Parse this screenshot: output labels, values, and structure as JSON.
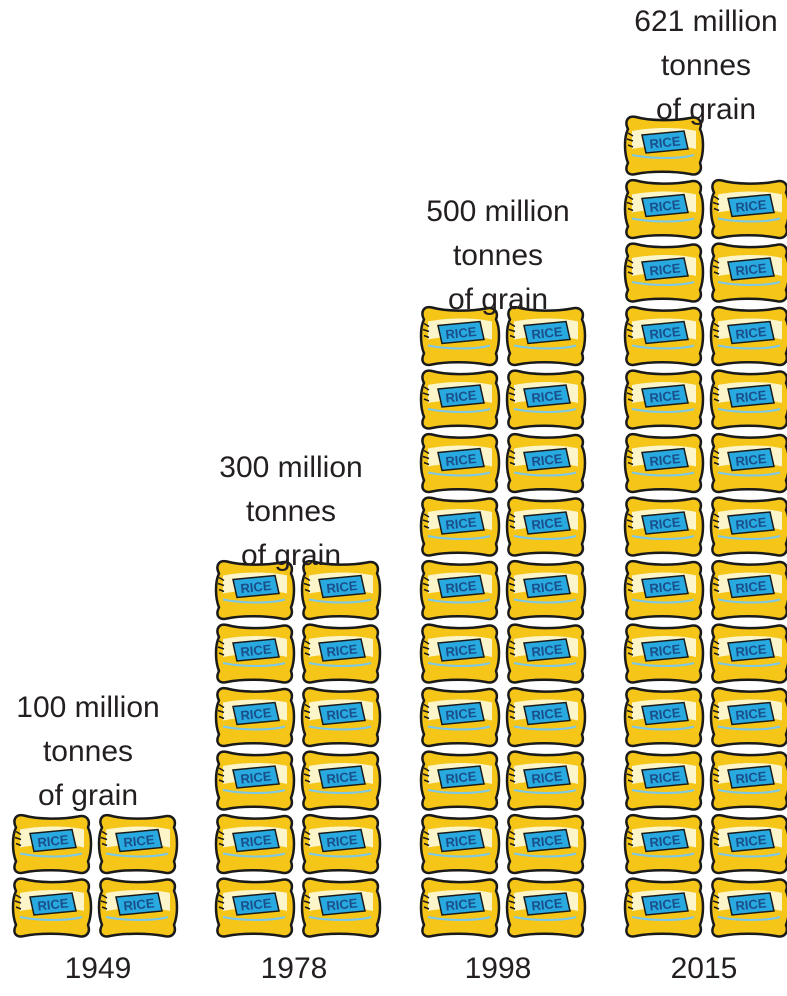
{
  "chart_data": {
    "type": "pictograph",
    "unit_icon": "rice-sack-icon",
    "unit_text": "RICE",
    "colors": {
      "sack_fill": "#f5c518",
      "sack_light": "#fbf5c9",
      "label_fill": "#28a9e0",
      "label_text": "#1a4f8a",
      "outline": "#1a1a1a"
    },
    "categories": [
      "1949",
      "1978",
      "1998",
      "2015"
    ],
    "values": [
      100,
      300,
      500,
      621
    ],
    "icon_counts": [
      4,
      12,
      20,
      25
    ],
    "labels": [
      [
        "100 million",
        "tonnes",
        "of grain"
      ],
      [
        "300 million",
        "tonnes",
        "of grain"
      ],
      [
        "500 million",
        "tonnes",
        "of grain"
      ],
      [
        "621 million",
        "tonnes",
        "of grain"
      ]
    ]
  }
}
